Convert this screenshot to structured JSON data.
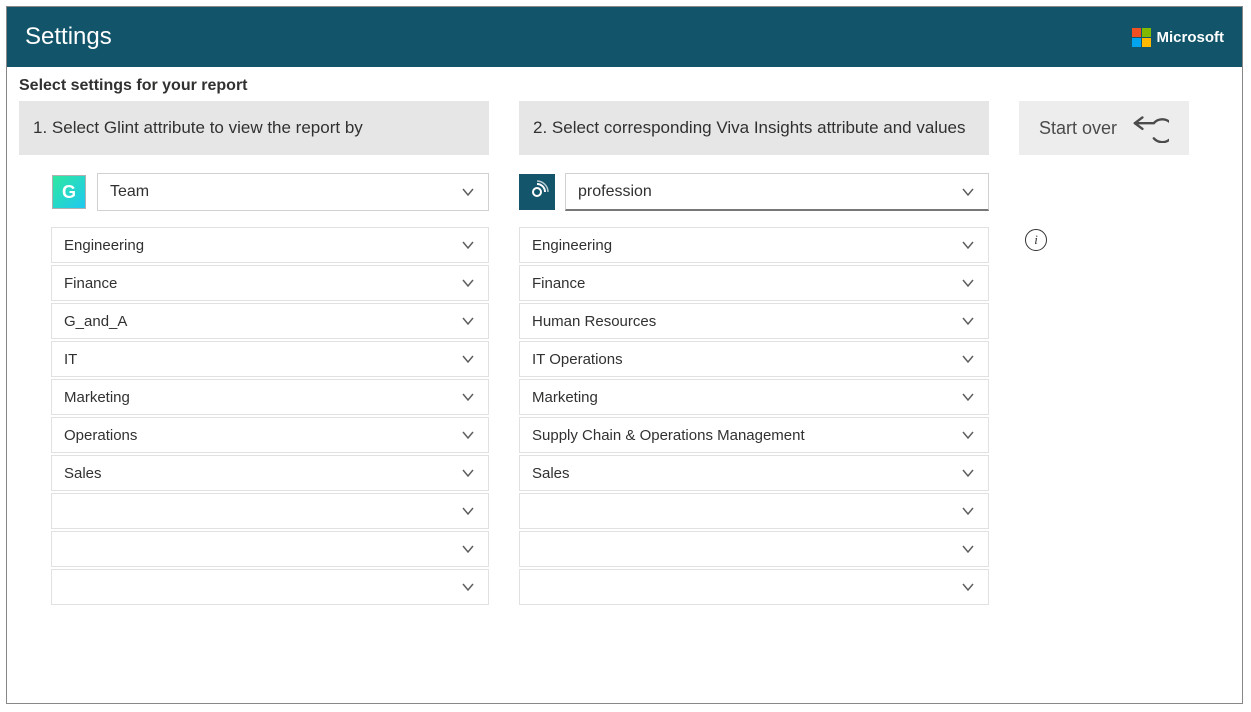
{
  "colors": {
    "header_bg": "#12556a",
    "step_bg": "#e6e6e6",
    "startover_bg": "#ededed",
    "border": "#d1d1d1",
    "text": "#323130"
  },
  "header": {
    "title": "Settings",
    "brand": "Microsoft",
    "logo_tiles": [
      "#f25022",
      "#7fba00",
      "#00a4ef",
      "#ffb900"
    ]
  },
  "subheader": "Select settings for your report",
  "start_over_label": "Start over",
  "left": {
    "step_label": "1. Select Glint attribute to view the report by",
    "attribute": "Team",
    "items": [
      "Engineering",
      "Finance",
      "G_and_A",
      "IT",
      "Marketing",
      "Operations",
      "Sales",
      "",
      "",
      ""
    ]
  },
  "right": {
    "step_label": "2. Select corresponding Viva Insights attribute and values",
    "attribute": "profession",
    "items": [
      "Engineering",
      "Finance",
      "Human Resources",
      "IT Operations",
      "Marketing",
      "Supply Chain & Operations Management",
      "Sales",
      "",
      "",
      ""
    ]
  }
}
